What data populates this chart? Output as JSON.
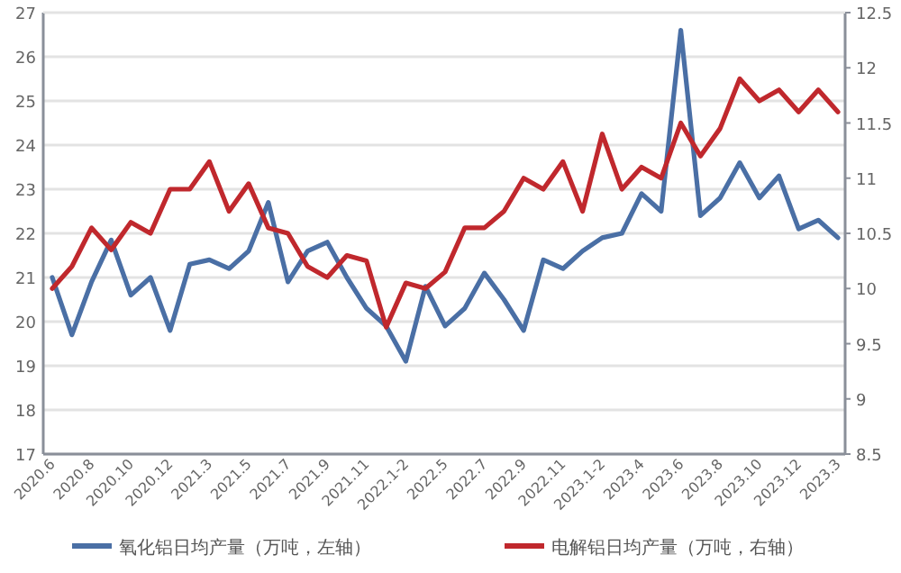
{
  "chart_data": {
    "type": "line",
    "categories": [
      "2020.6",
      null,
      "2020.8",
      null,
      "2020.10",
      null,
      "2020.12",
      null,
      "2021.3",
      null,
      "2021.5",
      null,
      "2021.7",
      null,
      "2021.9",
      null,
      "2021.11",
      null,
      "2022.1-2",
      null,
      "2022.5",
      null,
      "2022.7",
      null,
      "2022.9",
      null,
      "2022.11",
      null,
      "2023.1-2",
      null,
      "2023.4",
      null,
      "2023.6",
      null,
      "2023.8",
      null,
      "2023.10",
      null,
      "2023.12",
      null,
      "2023.3"
    ],
    "series": [
      {
        "name": "氧化铝日均产量（万吨，左轴）",
        "color": "#4a6fa5",
        "values": [
          21.0,
          19.7,
          20.9,
          21.85,
          20.6,
          21.0,
          19.8,
          21.3,
          21.4,
          21.2,
          21.6,
          22.7,
          20.9,
          21.6,
          21.8,
          21.0,
          20.3,
          19.9,
          19.1,
          20.8,
          19.9,
          20.3,
          21.1,
          20.5,
          19.8,
          21.4,
          21.2,
          21.6,
          21.9,
          22.0,
          22.9,
          22.5,
          26.6,
          22.4,
          22.8,
          23.6,
          22.8,
          23.3,
          22.1,
          22.3,
          21.9
        ]
      },
      {
        "name": "电解铝日均产量（万吨，右轴）",
        "color": "#c0282d",
        "axis": "y2",
        "values": [
          10.0,
          10.2,
          10.55,
          10.35,
          10.6,
          10.5,
          10.9,
          10.9,
          11.15,
          10.7,
          10.95,
          10.55,
          10.5,
          10.2,
          10.1,
          10.3,
          10.25,
          9.65,
          10.05,
          10.0,
          10.15,
          10.55,
          10.55,
          10.7,
          11.0,
          10.9,
          11.15,
          10.7,
          11.4,
          10.9,
          11.1,
          11.0,
          11.5,
          11.2,
          11.45,
          11.9,
          11.7,
          11.8,
          11.6,
          11.8,
          11.6
        ]
      }
    ],
    "ylim": [
      17,
      27
    ],
    "yticks": [
      17,
      18,
      19,
      20,
      21,
      22,
      23,
      24,
      25,
      26,
      27
    ],
    "y2lim": [
      8.5,
      12.5
    ],
    "y2ticks": [
      8.5,
      9,
      9.5,
      10,
      10.5,
      11,
      11.5,
      12,
      12.5
    ],
    "grid": "y",
    "legend": "bottom",
    "line_style": "solid"
  }
}
